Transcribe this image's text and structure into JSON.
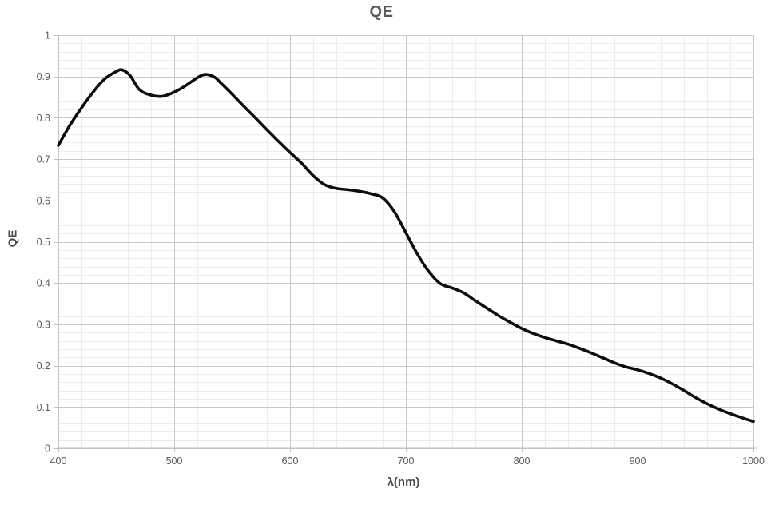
{
  "chart_data": {
    "type": "line",
    "title": "QE",
    "xlabel": "λ(nm)",
    "ylabel": "QE",
    "xlim": [
      400,
      1000
    ],
    "ylim": [
      0,
      1
    ],
    "grid": {
      "major": true,
      "minor": true
    },
    "legend": "none",
    "x_minor_step": 20,
    "y_minor_step": 0.02,
    "x_ticks": [
      {
        "v": 400,
        "label": "400"
      },
      {
        "v": 500,
        "label": "500"
      },
      {
        "v": 600,
        "label": "600"
      },
      {
        "v": 700,
        "label": "700"
      },
      {
        "v": 800,
        "label": "800"
      },
      {
        "v": 900,
        "label": "900"
      },
      {
        "v": 1000,
        "label": "1000"
      }
    ],
    "y_ticks": [
      {
        "v": 0,
        "label": "0"
      },
      {
        "v": 0.1,
        "label": "0.1"
      },
      {
        "v": 0.2,
        "label": "0.2"
      },
      {
        "v": 0.3,
        "label": "0.3"
      },
      {
        "v": 0.4,
        "label": "0.4"
      },
      {
        "v": 0.5,
        "label": "0.5"
      },
      {
        "v": 0.6,
        "label": "0.6"
      },
      {
        "v": 0.7,
        "label": "0.7"
      },
      {
        "v": 0.8,
        "label": "0.8"
      },
      {
        "v": 0.9,
        "label": "0.9"
      },
      {
        "v": 1,
        "label": "1"
      }
    ],
    "colors": {
      "line": "#0d0d0d",
      "grid_major": "#c9c9c9",
      "grid_minor": "#ededed",
      "axis": "#bfbfbf",
      "label": "#595959"
    },
    "series": [
      {
        "name": "QE",
        "points": [
          [
            400,
            0.733
          ],
          [
            410,
            0.782
          ],
          [
            420,
            0.824
          ],
          [
            430,
            0.862
          ],
          [
            440,
            0.894
          ],
          [
            450,
            0.912
          ],
          [
            455,
            0.916
          ],
          [
            462,
            0.902
          ],
          [
            470,
            0.868
          ],
          [
            480,
            0.855
          ],
          [
            490,
            0.852
          ],
          [
            500,
            0.862
          ],
          [
            510,
            0.878
          ],
          [
            520,
            0.897
          ],
          [
            527,
            0.905
          ],
          [
            535,
            0.898
          ],
          [
            540,
            0.885
          ],
          [
            550,
            0.857
          ],
          [
            560,
            0.828
          ],
          [
            570,
            0.8
          ],
          [
            580,
            0.771
          ],
          [
            590,
            0.743
          ],
          [
            600,
            0.716
          ],
          [
            610,
            0.69
          ],
          [
            620,
            0.66
          ],
          [
            630,
            0.638
          ],
          [
            640,
            0.629
          ],
          [
            650,
            0.626
          ],
          [
            660,
            0.622
          ],
          [
            670,
            0.616
          ],
          [
            680,
            0.606
          ],
          [
            690,
            0.573
          ],
          [
            700,
            0.522
          ],
          [
            710,
            0.47
          ],
          [
            720,
            0.427
          ],
          [
            730,
            0.398
          ],
          [
            740,
            0.388
          ],
          [
            750,
            0.376
          ],
          [
            760,
            0.357
          ],
          [
            770,
            0.339
          ],
          [
            780,
            0.321
          ],
          [
            790,
            0.305
          ],
          [
            800,
            0.29
          ],
          [
            810,
            0.278
          ],
          [
            820,
            0.268
          ],
          [
            830,
            0.26
          ],
          [
            840,
            0.252
          ],
          [
            850,
            0.242
          ],
          [
            860,
            0.231
          ],
          [
            870,
            0.219
          ],
          [
            880,
            0.207
          ],
          [
            890,
            0.197
          ],
          [
            900,
            0.19
          ],
          [
            910,
            0.181
          ],
          [
            920,
            0.17
          ],
          [
            930,
            0.156
          ],
          [
            940,
            0.14
          ],
          [
            950,
            0.123
          ],
          [
            960,
            0.108
          ],
          [
            970,
            0.095
          ],
          [
            980,
            0.084
          ],
          [
            990,
            0.074
          ],
          [
            1000,
            0.065
          ]
        ]
      }
    ]
  }
}
